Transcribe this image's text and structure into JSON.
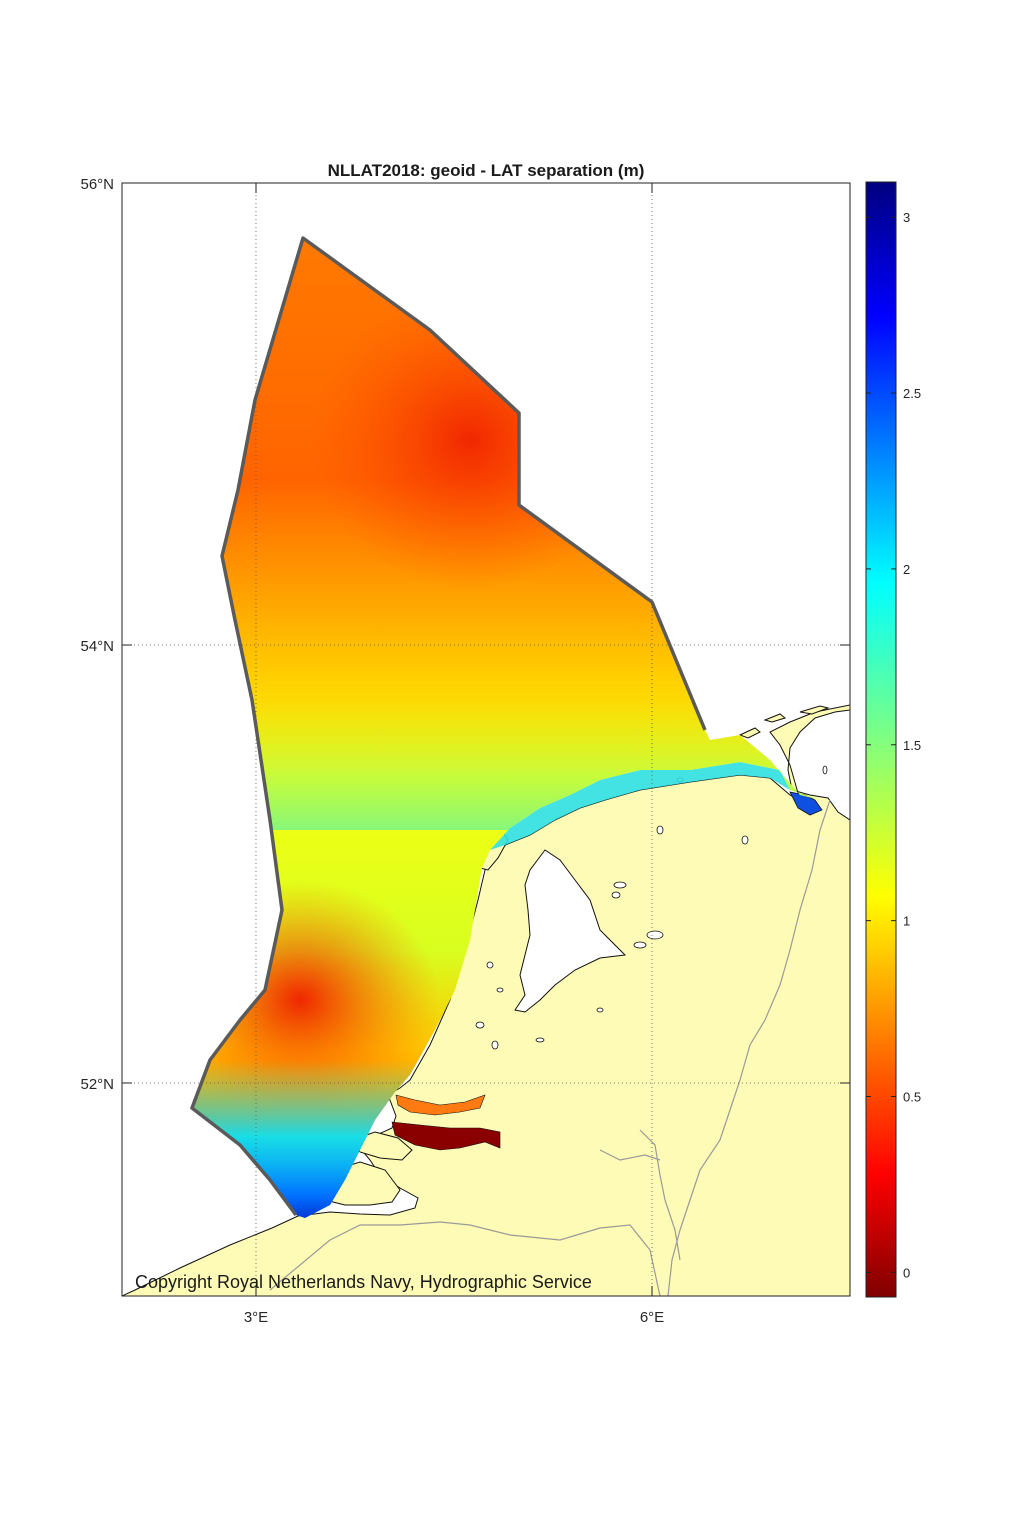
{
  "map": {
    "title": "NLLAT2018: geoid - LAT separation (m)",
    "copyright": "Copyright Royal Netherlands Navy, Hydrographic Service",
    "lat_labels": [
      "56°N",
      "54°N",
      "52°N"
    ],
    "lon_labels": [
      "3°E",
      "6°E"
    ],
    "colorbar": {
      "ticks": [
        "3",
        "2.5",
        "2",
        "1.5",
        "1",
        "0.5",
        "0"
      ],
      "range": [
        -0.07,
        3.1
      ],
      "colormap": "jet"
    },
    "colors": {
      "land": "#fdfbb5",
      "boundary": "#5a5a5a",
      "coastline": "#111111",
      "border": "#9a9a9a"
    }
  }
}
